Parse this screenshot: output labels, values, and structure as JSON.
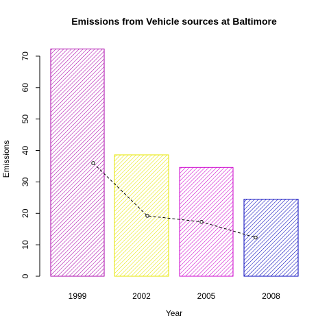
{
  "chart_data": {
    "type": "bar",
    "title": "Emissions from Vehicle sources at Baltimore",
    "xlabel": "Year",
    "ylabel": "Emissions",
    "categories": [
      "1999",
      "2002",
      "2005",
      "2008"
    ],
    "values": [
      72.3,
      38.6,
      34.6,
      24.5
    ],
    "ylim": [
      0,
      75
    ],
    "yticks": [
      0,
      10,
      20,
      30,
      40,
      50,
      60,
      70
    ],
    "grid": false,
    "bar_fill": "diagonal-hatch",
    "bar_colors": [
      "#aa00aa",
      "#e6e600",
      "#cc00cc",
      "#0000bb"
    ],
    "overlay_line": {
      "style": "dashed",
      "marker": "open-circle",
      "color": "#000000",
      "values": [
        36.0,
        19.2,
        17.3,
        12.3
      ]
    }
  }
}
